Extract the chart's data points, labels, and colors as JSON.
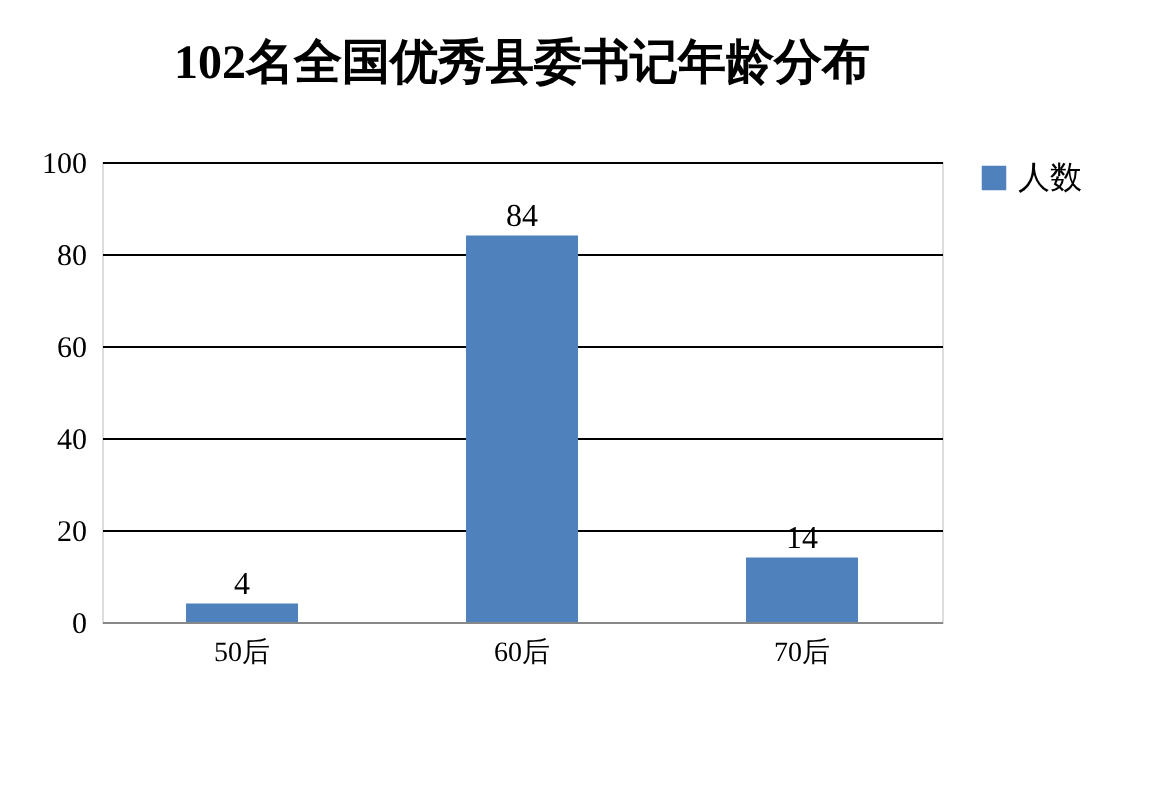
{
  "chart_data": {
    "type": "bar",
    "title": "102名全国优秀县委书记年龄分布",
    "categories": [
      "50后",
      "60后",
      "70后"
    ],
    "series": [
      {
        "name": "人数",
        "color": "#4f81bd",
        "values": [
          4,
          84,
          14
        ]
      }
    ],
    "ylim": [
      0,
      100
    ],
    "yticks": [
      0,
      20,
      40,
      60,
      80,
      100
    ],
    "grid": "y",
    "legend": "right",
    "data_labels": true
  }
}
